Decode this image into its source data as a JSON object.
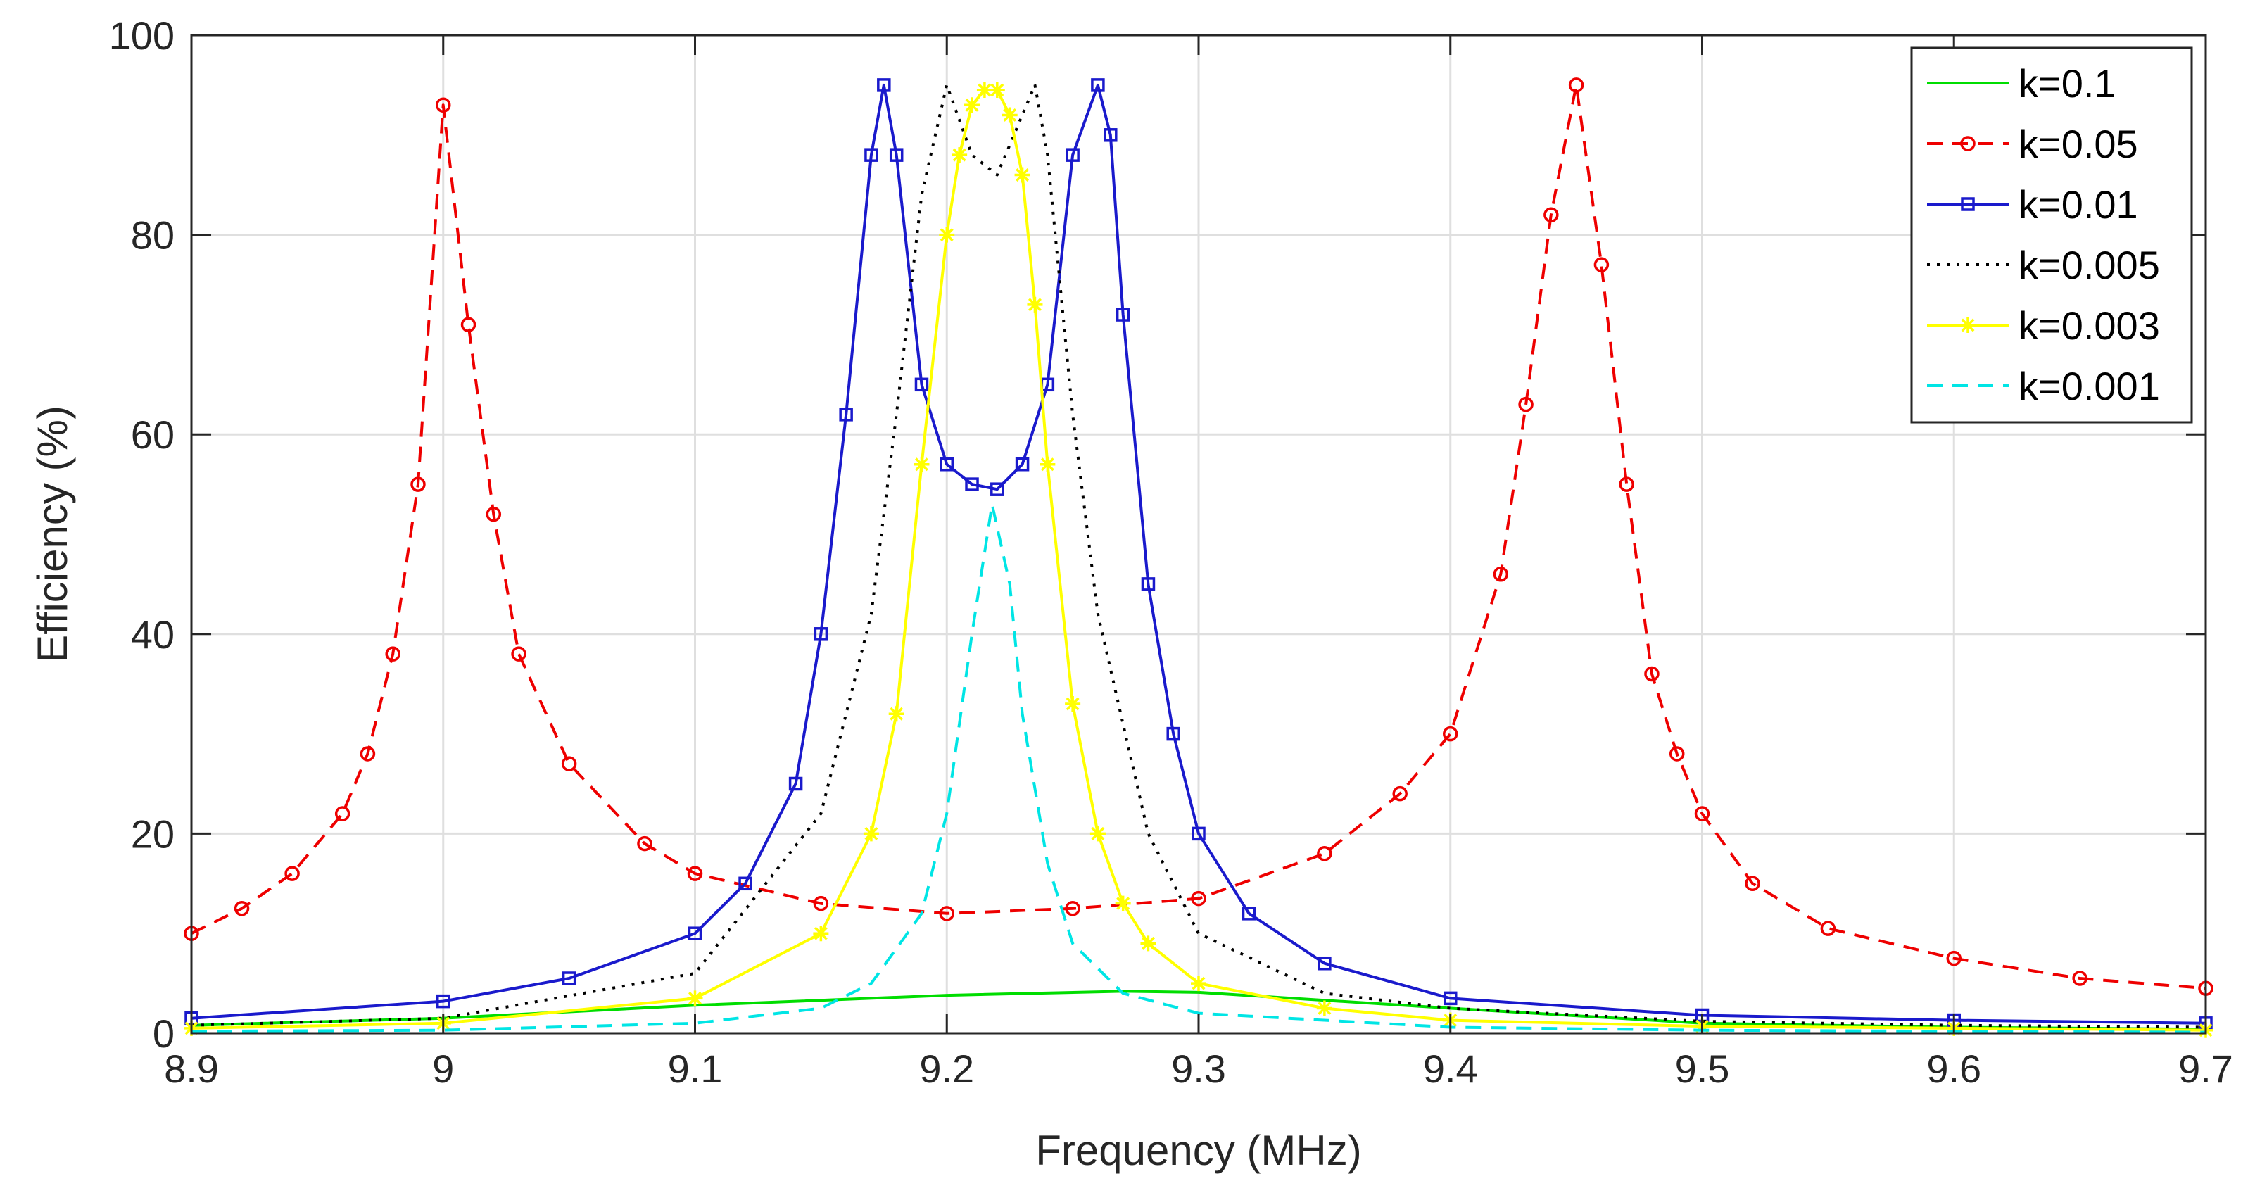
{
  "chart_data": {
    "type": "line",
    "xlabel": "Frequency (MHz)",
    "ylabel": "Efficiency (%)",
    "xlim": [
      8.9,
      9.7
    ],
    "ylim": [
      0,
      100
    ],
    "xticks": [
      "8.9",
      "9",
      "9.1",
      "9.2",
      "9.3",
      "9.4",
      "9.5",
      "9.6",
      "9.7"
    ],
    "yticks": [
      "0",
      "20",
      "40",
      "60",
      "80",
      "100"
    ],
    "grid": true,
    "legend_position": "top-right",
    "series": [
      {
        "name": "k=0.1",
        "color": "#00dd00",
        "dash": "solid",
        "marker": "none",
        "x": [
          8.9,
          9.0,
          9.1,
          9.2,
          9.27,
          9.3,
          9.4,
          9.5,
          9.6,
          9.7
        ],
        "y": [
          0.8,
          1.5,
          2.8,
          3.8,
          4.2,
          4.1,
          2.5,
          1.0,
          0.6,
          0.4
        ]
      },
      {
        "name": "k=0.05",
        "color": "#ee0000",
        "dash": "dashed",
        "marker": "circle",
        "x": [
          8.9,
          8.92,
          8.94,
          8.96,
          8.97,
          8.98,
          8.99,
          9.0,
          9.01,
          9.02,
          9.03,
          9.05,
          9.08,
          9.1,
          9.15,
          9.2,
          9.25,
          9.3,
          9.35,
          9.38,
          9.4,
          9.42,
          9.43,
          9.44,
          9.45,
          9.46,
          9.47,
          9.48,
          9.49,
          9.5,
          9.52,
          9.55,
          9.6,
          9.65,
          9.7
        ],
        "y": [
          10,
          12.5,
          16,
          22,
          28,
          38,
          55,
          93,
          71,
          52,
          38,
          27,
          19,
          16,
          13,
          12,
          12.5,
          13.5,
          18,
          24,
          30,
          46,
          63,
          82,
          95,
          77,
          55,
          36,
          28,
          22,
          15,
          10.5,
          7.5,
          5.5,
          4.5
        ]
      },
      {
        "name": "k=0.01",
        "color": "#1a1acc",
        "dash": "solid",
        "marker": "square",
        "x": [
          8.9,
          9.0,
          9.05,
          9.1,
          9.12,
          9.14,
          9.15,
          9.16,
          9.17,
          9.175,
          9.18,
          9.19,
          9.2,
          9.21,
          9.22,
          9.23,
          9.24,
          9.25,
          9.26,
          9.265,
          9.27,
          9.28,
          9.29,
          9.3,
          9.32,
          9.35,
          9.4,
          9.5,
          9.6,
          9.7
        ],
        "y": [
          1.5,
          3.2,
          5.5,
          10,
          15,
          25,
          40,
          62,
          88,
          95,
          88,
          65,
          57,
          55,
          54.5,
          57,
          65,
          88,
          95,
          90,
          72,
          45,
          30,
          20,
          12,
          7,
          3.5,
          1.8,
          1.3,
          1.0
        ]
      },
      {
        "name": "k=0.005",
        "color": "#000000",
        "dash": "dotted",
        "marker": "none",
        "x": [
          8.9,
          9.0,
          9.1,
          9.15,
          9.17,
          9.18,
          9.19,
          9.2,
          9.21,
          9.22,
          9.23,
          9.235,
          9.24,
          9.25,
          9.26,
          9.28,
          9.3,
          9.35,
          9.4,
          9.5,
          9.6,
          9.7
        ],
        "y": [
          0.8,
          1.5,
          6,
          22,
          42,
          62,
          84,
          95,
          88,
          86,
          92,
          95,
          88,
          62,
          42,
          20,
          10,
          4,
          2.5,
          1.2,
          0.8,
          0.6
        ]
      },
      {
        "name": "k=0.003",
        "color": "#ffff00",
        "dash": "solid",
        "marker": "asterisk",
        "x": [
          8.9,
          9.0,
          9.1,
          9.15,
          9.17,
          9.18,
          9.19,
          9.2,
          9.205,
          9.21,
          9.215,
          9.22,
          9.225,
          9.23,
          9.235,
          9.24,
          9.25,
          9.26,
          9.27,
          9.28,
          9.3,
          9.35,
          9.4,
          9.5,
          9.6,
          9.7
        ],
        "y": [
          0.5,
          1.0,
          3.5,
          10,
          20,
          32,
          57,
          80,
          88,
          93,
          94.5,
          94.5,
          92,
          86,
          73,
          57,
          33,
          20,
          13,
          9,
          5,
          2.5,
          1.3,
          0.7,
          0.5,
          0.3
        ]
      },
      {
        "name": "k=0.001",
        "color": "#00e5e5",
        "dash": "dashed",
        "marker": "none",
        "x": [
          8.9,
          9.0,
          9.1,
          9.15,
          9.17,
          9.19,
          9.2,
          9.21,
          9.218,
          9.225,
          9.23,
          9.24,
          9.25,
          9.27,
          9.3,
          9.4,
          9.5,
          9.6,
          9.7
        ],
        "y": [
          0.2,
          0.3,
          1.0,
          2.5,
          5,
          12,
          22,
          40,
          53,
          45,
          32,
          17,
          9,
          4,
          2,
          0.6,
          0.3,
          0.2,
          0.1
        ]
      }
    ]
  }
}
